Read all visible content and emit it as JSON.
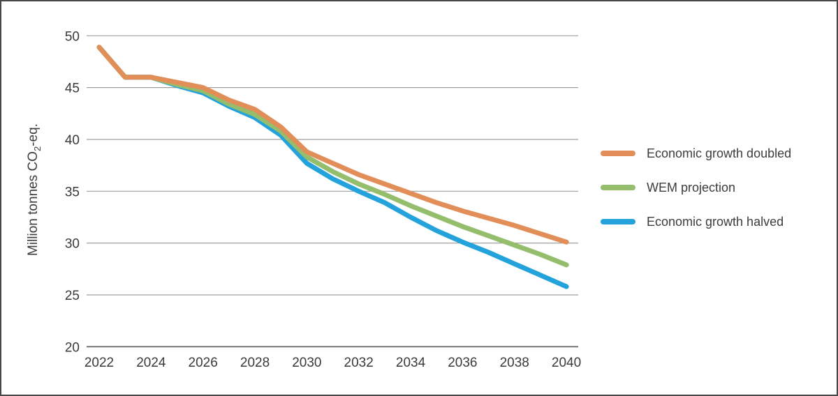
{
  "figure": {
    "background": "#ffffff",
    "border_color": "#474747"
  },
  "axis": {
    "ylabel_pre": "Million tonnes CO",
    "ylabel_sub": "2",
    "ylabel_post": "-eq.",
    "text_color": "#3a3a3a",
    "grid_color": "#9f9f9f",
    "baseline_color": "#777777"
  },
  "chart_data": {
    "type": "line",
    "title": "",
    "xlabel": "",
    "ylabel": "Million tonnes CO2-eq.",
    "xlim": [
      2022,
      2040
    ],
    "ylim": [
      20,
      50
    ],
    "grid": "horizontal",
    "legend_position": "right",
    "x": [
      2022,
      2023,
      2024,
      2025,
      2026,
      2027,
      2028,
      2029,
      2030,
      2031,
      2032,
      2033,
      2034,
      2035,
      2036,
      2037,
      2038,
      2039,
      2040
    ],
    "x_ticks": [
      2022,
      2024,
      2026,
      2028,
      2030,
      2032,
      2034,
      2036,
      2038,
      2040
    ],
    "y_ticks": [
      20,
      25,
      30,
      35,
      40,
      45,
      50
    ],
    "series": [
      {
        "name": "Economic growth doubled",
        "color": "#E28E58",
        "values": [
          48.9,
          46.0,
          46.0,
          45.5,
          45.0,
          43.8,
          42.9,
          41.2,
          38.8,
          37.7,
          36.6,
          35.7,
          34.8,
          33.9,
          33.1,
          32.4,
          31.7,
          30.9,
          30.1
        ]
      },
      {
        "name": "WEM projection",
        "color": "#94BE6C",
        "values": [
          48.9,
          46.0,
          46.0,
          45.3,
          44.7,
          43.4,
          42.4,
          40.8,
          38.3,
          36.9,
          35.7,
          34.7,
          33.6,
          32.6,
          31.6,
          30.7,
          29.8,
          28.9,
          27.9
        ]
      },
      {
        "name": "Economic growth halved",
        "color": "#24A2DB",
        "values": [
          48.9,
          46.0,
          46.0,
          45.2,
          44.5,
          43.2,
          42.1,
          40.4,
          37.7,
          36.2,
          35.0,
          33.9,
          32.5,
          31.2,
          30.1,
          29.1,
          28.0,
          26.9,
          25.8
        ]
      }
    ]
  }
}
